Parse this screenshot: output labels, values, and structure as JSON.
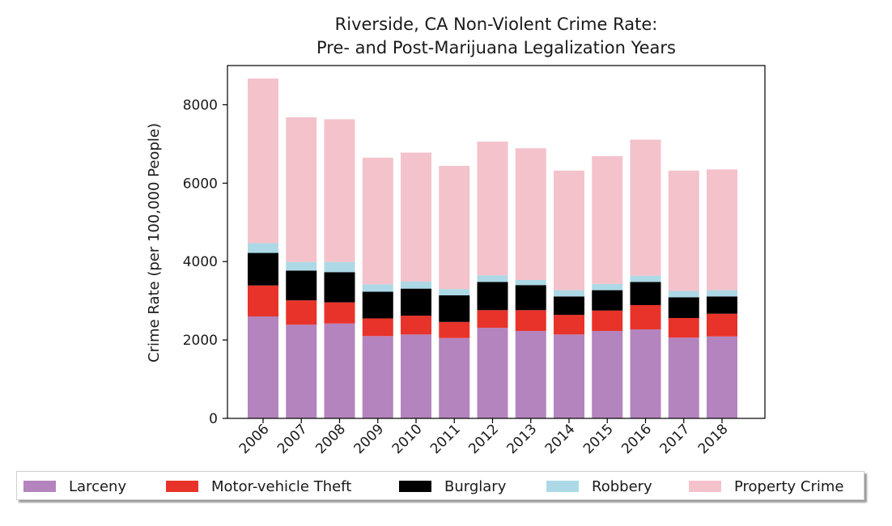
{
  "chart_data": {
    "type": "bar",
    "stacked": true,
    "title": "Riverside, CA Non-Violent Crime Rate:",
    "subtitle": "Pre- and Post-Marijuana Legalization Years",
    "xlabel": "",
    "ylabel": "Crime Rate (per 100,000 People)",
    "ylim": [
      0,
      9000
    ],
    "yticks": [
      0,
      2000,
      4000,
      6000,
      8000
    ],
    "yticklabels": [
      "0",
      "2000",
      "4000",
      "6000",
      "8000"
    ],
    "grid": false,
    "legend_placement": "below",
    "categories": [
      "2006",
      "2007",
      "2008",
      "2009",
      "2010",
      "2011",
      "2012",
      "2013",
      "2014",
      "2015",
      "2016",
      "2017",
      "2018"
    ],
    "series": [
      {
        "name": "Larceny",
        "color": "#b384bd",
        "values": [
          2600,
          2390,
          2420,
          2100,
          2140,
          2050,
          2310,
          2230,
          2140,
          2230,
          2270,
          2060,
          2090
        ]
      },
      {
        "name": "Motor-vehicle Theft",
        "color": "#e8332a",
        "values": [
          790,
          620,
          540,
          450,
          480,
          410,
          450,
          530,
          500,
          520,
          620,
          500,
          580
        ]
      },
      {
        "name": "Burglary",
        "color": "#000000",
        "values": [
          830,
          760,
          770,
          680,
          690,
          680,
          720,
          640,
          470,
          520,
          590,
          530,
          440
        ]
      },
      {
        "name": "Robbery",
        "color": "#add8e6",
        "values": [
          250,
          220,
          260,
          190,
          180,
          160,
          170,
          130,
          160,
          160,
          160,
          160,
          160
        ]
      },
      {
        "name": "Property Crime",
        "color": "#f4c2ca",
        "values": [
          4200,
          3690,
          3640,
          3230,
          3290,
          3140,
          3410,
          3360,
          3050,
          3260,
          3470,
          3070,
          3080
        ]
      }
    ]
  }
}
